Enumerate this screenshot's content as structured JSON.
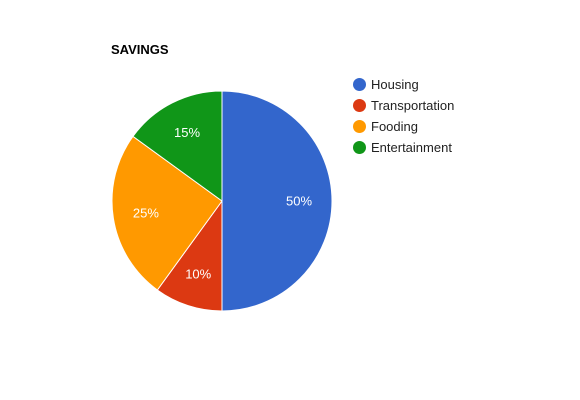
{
  "chart_data": {
    "type": "pie",
    "title": "SAVINGS",
    "categories": [
      "Housing",
      "Transportation",
      "Fooding",
      "Entertainment"
    ],
    "values": [
      50,
      10,
      25,
      15
    ],
    "value_labels": [
      "50%",
      "10%",
      "25%",
      "15%"
    ],
    "colors": [
      "#3366cc",
      "#dc3912",
      "#ff9900",
      "#109618"
    ],
    "legend_position": "right"
  }
}
